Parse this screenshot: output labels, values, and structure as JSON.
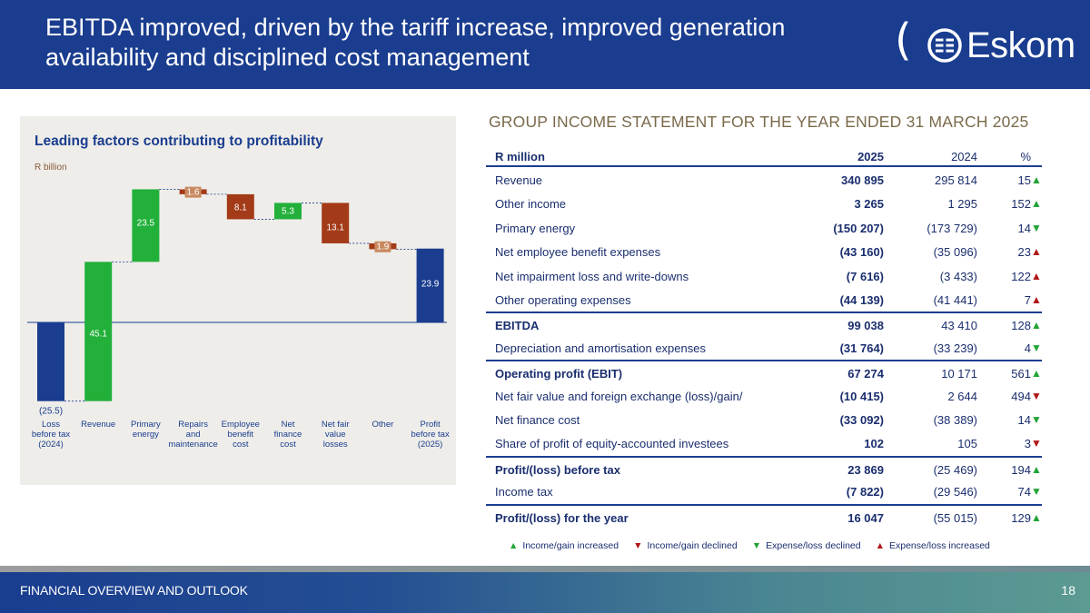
{
  "header": {
    "title": "EBITDA improved, driven by the tariff increase, improved generation availability and disciplined cost management",
    "logo_text": "Eskom"
  },
  "chart_panel": {
    "title": "Leading factors contributing to profitability",
    "unit": "R billion"
  },
  "chart_data": {
    "type": "waterfall",
    "title": "Leading factors contributing to profitability",
    "ylabel": "R billion",
    "baseline": 0,
    "colors": {
      "total": "#1a3d8f",
      "increase": "#22b03a",
      "decrease": "#a33a18"
    },
    "steps": [
      {
        "category": "Loss before tax (2024)",
        "value": -25.5,
        "label": "(25.5)",
        "kind": "total"
      },
      {
        "category": "Revenue",
        "value": 45.1,
        "label": "45.1",
        "kind": "increase"
      },
      {
        "category": "Primary energy",
        "value": 23.5,
        "label": "23.5",
        "kind": "increase"
      },
      {
        "category": "Repairs and maintenance",
        "value": -1.6,
        "label": "1.6",
        "kind": "decrease"
      },
      {
        "category": "Employee benefit cost",
        "value": -8.1,
        "label": "8.1",
        "kind": "decrease"
      },
      {
        "category": "Net finance cost",
        "value": 5.3,
        "label": "5.3",
        "kind": "increase"
      },
      {
        "category": "Net fair value losses",
        "value": -13.1,
        "label": "13.1",
        "kind": "decrease"
      },
      {
        "category": "Other",
        "value": -1.9,
        "label": "1.9",
        "kind": "decrease"
      },
      {
        "category": "Profit before tax (2025)",
        "value": 23.9,
        "label": "23.9",
        "kind": "total"
      }
    ]
  },
  "table": {
    "title": "GROUP INCOME STATEMENT FOR THE YEAR ENDED 31 MARCH 2025",
    "headers": {
      "label": "R million",
      "y2025": "2025",
      "y2024": "2024",
      "pct": "%"
    },
    "rows": [
      {
        "label": "Revenue",
        "y2025": "340 895",
        "y2024": "295 814",
        "pct": "15",
        "arrow": "up-green",
        "bold": false,
        "border": false
      },
      {
        "label": "Other income",
        "y2025": "3 265",
        "y2024": "1 295",
        "pct": "152",
        "arrow": "up-green",
        "bold": false,
        "border": false
      },
      {
        "label": "Primary energy",
        "y2025": "(150 207)",
        "y2024": "(173 729)",
        "pct": "14",
        "arrow": "down-green",
        "bold": false,
        "border": false
      },
      {
        "label": "Net employee benefit expenses",
        "y2025": "(43 160)",
        "y2024": "(35 096)",
        "pct": "23",
        "arrow": "up-red",
        "bold": false,
        "border": false
      },
      {
        "label": "Net impairment loss and write-downs",
        "y2025": "(7 616)",
        "y2024": "(3 433)",
        "pct": "122",
        "arrow": "up-red",
        "bold": false,
        "border": false
      },
      {
        "label": "Other operating expenses",
        "y2025": "(44 139)",
        "y2024": "(41 441)",
        "pct": "7",
        "arrow": "up-red",
        "bold": false,
        "border": false
      },
      {
        "label": "EBITDA",
        "y2025": "99 038",
        "y2024": "43 410",
        "pct": "128",
        "arrow": "up-green",
        "bold": true,
        "border": true
      },
      {
        "label": "Depreciation and amortisation expenses",
        "y2025": "(31 764)",
        "y2024": "(33 239)",
        "pct": "4",
        "arrow": "down-green",
        "bold": false,
        "border": false
      },
      {
        "label": "Operating profit (EBIT)",
        "y2025": "67 274",
        "y2024": "10 171",
        "pct": "561",
        "arrow": "up-green",
        "bold": true,
        "border": true
      },
      {
        "label": "Net fair value and foreign exchange (loss)/gain/",
        "y2025": "(10 415)",
        "y2024": "2 644",
        "pct": "494",
        "arrow": "down-red",
        "bold": false,
        "border": false
      },
      {
        "label": "Net finance cost",
        "y2025": "(33 092)",
        "y2024": "(38 389)",
        "pct": "14",
        "arrow": "down-green",
        "bold": false,
        "border": false
      },
      {
        "label": "Share of profit of equity-accounted investees",
        "y2025": "102",
        "y2024": "105",
        "pct": "3",
        "arrow": "down-red",
        "bold": false,
        "border": false
      },
      {
        "label": "Profit/(loss) before tax",
        "y2025": "23 869",
        "y2024": "(25 469)",
        "pct": "194",
        "arrow": "up-green",
        "bold": true,
        "border": true
      },
      {
        "label": "Income tax",
        "y2025": "(7 822)",
        "y2024": "(29 546)",
        "pct": "74",
        "arrow": "down-green",
        "bold": false,
        "border": false
      },
      {
        "label": "Profit/(loss) for the year",
        "y2025": "16 047",
        "y2024": "(55 015)",
        "pct": "129",
        "arrow": "up-green",
        "bold": true,
        "border": true
      }
    ]
  },
  "legend": [
    {
      "label": "Income/gain increased",
      "arrow": "up-green"
    },
    {
      "label": "Income/gain declined",
      "arrow": "down-red"
    },
    {
      "label": "Expense/loss declined",
      "arrow": "down-green"
    },
    {
      "label": "Expense/loss increased",
      "arrow": "up-red"
    }
  ],
  "footer": {
    "label": "FINANCIAL OVERVIEW AND OUTLOOK",
    "page": "18"
  }
}
